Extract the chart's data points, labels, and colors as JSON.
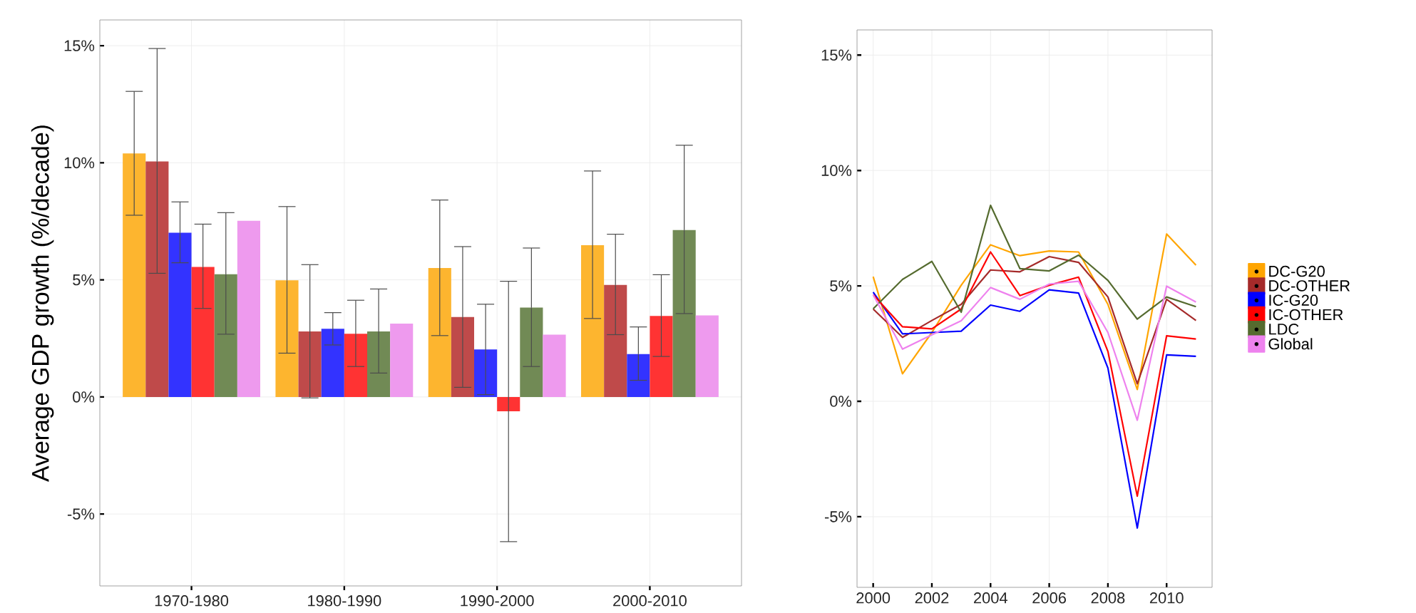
{
  "chart_data": [
    {
      "type": "bar",
      "ylabel": "Average GDP growth (%/decade)",
      "categories": [
        "1970-1980",
        "1980-1990",
        "1990-2000",
        "2000-2010"
      ],
      "ylim": [
        -8.07,
        16.1
      ],
      "yticks": [
        {
          "value": -5,
          "label": "-5%"
        },
        {
          "value": 0,
          "label": "0%"
        },
        {
          "value": 5,
          "label": "5%"
        },
        {
          "value": 10,
          "label": "10%"
        },
        {
          "value": 15,
          "label": "15%"
        }
      ],
      "grid": true,
      "legend": false,
      "series": [
        {
          "color": "#fdb52f",
          "values": [
            10.4,
            4.98,
            5.51,
            6.48
          ],
          "errors": [
            [
              7.76,
              13.05
            ],
            [
              1.87,
              8.13
            ],
            [
              2.62,
              8.41
            ],
            [
              3.35,
              9.65
            ]
          ]
        },
        {
          "color": "#bf4a4a",
          "values": [
            10.06,
            2.8,
            3.41,
            4.78
          ],
          "errors": [
            [
              5.28,
              14.88
            ],
            [
              -0.04,
              5.65
            ],
            [
              0.41,
              6.42
            ],
            [
              2.66,
              6.95
            ]
          ]
        },
        {
          "color": "#3333ff",
          "values": [
            7.01,
            2.91,
            2.03,
            1.83
          ],
          "errors": [
            [
              5.73,
              8.33
            ],
            [
              2.22,
              3.6
            ],
            [
              0.1,
              3.96
            ],
            [
              0.71,
              2.99
            ]
          ]
        },
        {
          "color": "#ff3333",
          "values": [
            5.55,
            2.7,
            -0.61,
            3.46
          ],
          "errors": [
            [
              3.78,
              7.38
            ],
            [
              1.3,
              4.13
            ],
            [
              -6.18,
              4.94
            ],
            [
              1.73,
              5.22
            ]
          ]
        },
        {
          "color": "#718a55",
          "values": [
            5.24,
            2.8,
            3.82,
            7.13
          ],
          "errors": [
            [
              2.68,
              7.87
            ],
            [
              1.02,
              4.61
            ],
            [
              1.3,
              6.36
            ],
            [
              3.56,
              10.75
            ]
          ]
        },
        {
          "color": "#ee9aee",
          "values": [
            7.52,
            3.13,
            2.66,
            3.48
          ]
        }
      ]
    },
    {
      "type": "line",
      "x": [
        2000,
        2001,
        2002,
        2003,
        2004,
        2005,
        2006,
        2007,
        2008,
        2009,
        2010,
        2011
      ],
      "xlim": [
        1999.45,
        2011.55
      ],
      "xticks": [
        2000,
        2002,
        2004,
        2006,
        2008,
        2010
      ],
      "ylim": [
        -8.06,
        16.09
      ],
      "yticks": [
        {
          "value": -5,
          "label": "-5%"
        },
        {
          "value": 0,
          "label": "0%"
        },
        {
          "value": 5,
          "label": "5%"
        },
        {
          "value": 10,
          "label": "10%"
        },
        {
          "value": 15,
          "label": "15%"
        }
      ],
      "grid": true,
      "legend": "right",
      "marker": "none",
      "series": [
        {
          "name": "DC-G20",
          "color": "#ffa500",
          "values": [
            5.4,
            1.19,
            2.98,
            5.03,
            6.78,
            6.31,
            6.51,
            6.47,
            4.2,
            0.51,
            7.25,
            5.9
          ]
        },
        {
          "name": "DC-OTHER",
          "color": "#a52a2a",
          "values": [
            4.0,
            2.77,
            3.5,
            4.2,
            5.69,
            5.61,
            6.27,
            6.02,
            4.52,
            0.76,
            4.42,
            3.5
          ]
        },
        {
          "name": "IC-G20",
          "color": "#0000ff",
          "values": [
            4.73,
            2.92,
            2.98,
            3.04,
            4.17,
            3.9,
            4.83,
            4.69,
            1.44,
            -5.49,
            2.01,
            1.95
          ]
        },
        {
          "name": "IC-OTHER",
          "color": "#ff0000",
          "values": [
            4.62,
            3.23,
            3.14,
            4.0,
            6.47,
            4.58,
            5.03,
            5.38,
            2.16,
            -4.11,
            2.84,
            2.7
          ]
        },
        {
          "name": "LDC",
          "color": "#556b2f",
          "values": [
            4.01,
            5.28,
            6.06,
            3.86,
            8.49,
            5.75,
            5.65,
            6.33,
            5.24,
            3.56,
            4.52,
            4.1
          ]
        },
        {
          "name": "Global",
          "color": "#ee82ee",
          "values": [
            4.62,
            2.26,
            2.88,
            3.49,
            4.93,
            4.42,
            5.08,
            5.2,
            2.98,
            -0.82,
            4.99,
            4.3
          ]
        }
      ]
    }
  ]
}
